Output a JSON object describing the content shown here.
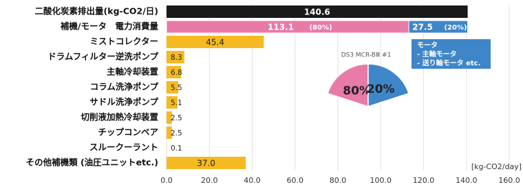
{
  "chart_data": [
    {
      "type": "bar",
      "categories": [
        "二酸化炭素排出量(kg-CO2/日)",
        "補機/モータ　電力消費量",
        "ミストコレクター",
        "ドラムフィルター逆洗ポンプ",
        "主軸冷却装置",
        "コラム洗浄ポンプ",
        "サドル洗浄ポンプ",
        "切削液加熱冷却装置",
        "チップコンベア",
        "スルークーラント",
        "その他補機類 (油圧ユニットetc.)"
      ],
      "values": [
        140.6,
        null,
        45.4,
        8.3,
        6.8,
        5.5,
        5.1,
        2.5,
        2.5,
        0.1,
        37.0
      ],
      "value_labels": [
        "140.6",
        null,
        "45.4",
        "8.3",
        "6.8",
        "5.5",
        "5.1",
        "2.5",
        "2.5",
        "0.1",
        "37.0"
      ],
      "colors": [
        "#1a1a1a",
        null,
        "#f5b921",
        "#f5b921",
        "#f5b921",
        "#f5b921",
        "#f5b921",
        "#f5b921",
        "#f5b921",
        "#f5b921",
        "#f5b921"
      ],
      "breakdown": [
        {
          "value": 113.1,
          "label": "(80%)",
          "color": "#e87aa7"
        },
        {
          "value": 27.5,
          "label": "(20%)",
          "color": "#3f86c8"
        }
      ],
      "xlim": [
        0,
        160
      ],
      "xticks": [
        {
          "value": 0,
          "label": "0.0"
        },
        {
          "value": 20,
          "label": "20.0"
        },
        {
          "value": 40,
          "label": "40.0"
        },
        {
          "value": 60,
          "label": "60.0"
        },
        {
          "value": 80,
          "label": "80.0"
        },
        {
          "value": 100,
          "label": "100.0"
        },
        {
          "value": 120,
          "label": "120.0"
        },
        {
          "value": 140,
          "label": "140.0"
        },
        {
          "value": 160,
          "label": "160.0"
        }
      ],
      "x_unit": "[kg-CO2/day]",
      "grid": true
    },
    {
      "type": "pie",
      "title": "DS3 MCR-BⅢ #1",
      "values": [
        80,
        20
      ],
      "value_labels": [
        "80%",
        "20%"
      ],
      "colors": [
        "#e87aa7",
        "#3f86c8"
      ],
      "annotation": [
        "モータ",
        "-  主軸モータ",
        "-  送り軸モータ etc."
      ]
    }
  ]
}
